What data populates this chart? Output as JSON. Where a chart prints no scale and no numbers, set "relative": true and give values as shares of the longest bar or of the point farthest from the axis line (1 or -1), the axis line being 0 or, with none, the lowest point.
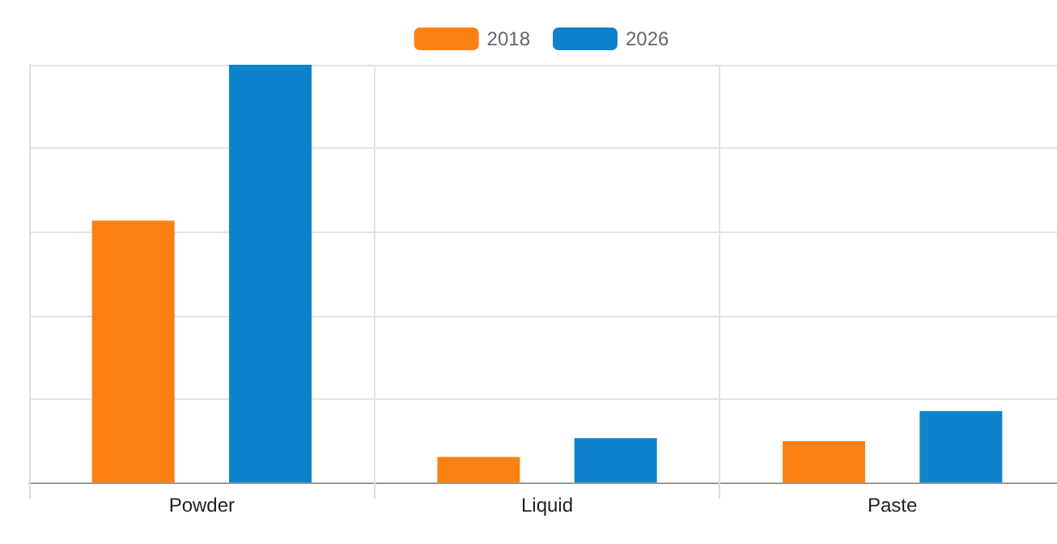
{
  "chart_data": {
    "type": "bar",
    "relative": true,
    "categories": [
      "Powder",
      "Liquid",
      "Paste"
    ],
    "series": [
      {
        "name": "2018",
        "color": "#fd8012",
        "values": [
          0.627,
          0.061,
          0.099
        ]
      },
      {
        "name": "2026",
        "color": "#0f82cc",
        "values": [
          1,
          0.106,
          0.171
        ]
      }
    ],
    "grid": true,
    "legend": "top"
  }
}
